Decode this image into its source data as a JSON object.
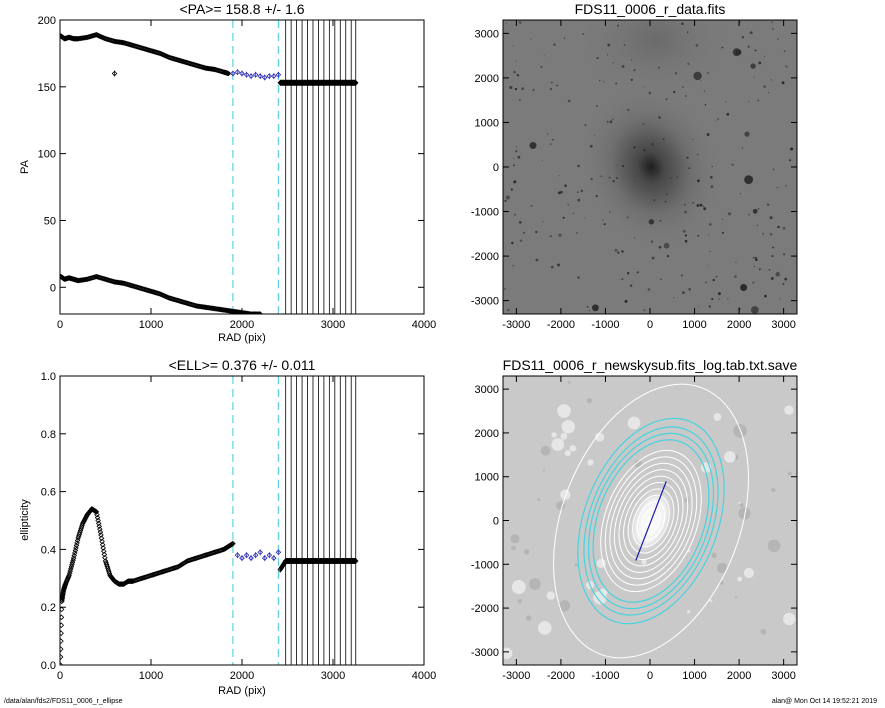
{
  "footer": {
    "left": "/data/alan/fds2/FDS11_0006_r_ellipse",
    "right": "alan@  Mon Oct 14 19:52:21 2019"
  },
  "colors": {
    "fit_points": "#2b2bb5",
    "dashed_lines": "#5fd3e0",
    "ellipse_white": "#ffffff",
    "ellipse_cyan": "#49d2dc",
    "major_axis": "#1a1aa8"
  },
  "chart_data": [
    {
      "type": "scatter",
      "title": "<PA>= 158.8 +/-   1.6",
      "xlabel": "RAD (pix)",
      "ylabel": "PA",
      "xlim": [
        0,
        4000
      ],
      "ylim": [
        -20,
        200
      ],
      "xticks": [
        "0",
        "1000",
        "2000",
        "3000",
        "4000"
      ],
      "yticks": [
        "0",
        "50",
        "100",
        "150",
        "200"
      ],
      "dashed_x": [
        1900,
        2400
      ],
      "vertical_lines_x": [
        2480,
        2540,
        2600,
        2660,
        2720,
        2780,
        2840,
        2900,
        2960,
        3020,
        3080,
        3140,
        3200,
        3250
      ],
      "series": [
        {
          "x": [
            10,
            50,
            100,
            150,
            200,
            300,
            400,
            500,
            600,
            700,
            800,
            900,
            1000,
            1100,
            1200,
            1300,
            1400,
            1500,
            1600,
            1700,
            1800,
            1850
          ],
          "y": [
            188,
            186,
            187,
            186,
            186,
            187,
            189,
            186,
            184,
            183,
            181,
            179,
            177,
            175,
            172,
            170,
            168,
            166,
            164,
            163,
            161,
            160
          ]
        },
        {
          "x": [
            10,
            50,
            100,
            150,
            200,
            300,
            400,
            500,
            600,
            700,
            800,
            900,
            1000,
            1100,
            1200,
            1300,
            1400,
            1500,
            1600,
            1700,
            1800,
            1900,
            2000,
            2100,
            2200
          ],
          "y": [
            8,
            6,
            7,
            6,
            5,
            6,
            8,
            6,
            4,
            3,
            1,
            -1,
            -3,
            -5,
            -8,
            -10,
            -12,
            -14,
            -15,
            -16,
            -17,
            -18,
            -19,
            -20,
            -20
          ]
        },
        {
          "name": "fit",
          "x": [
            1900,
            1950,
            2000,
            2050,
            2100,
            2150,
            2200,
            2250,
            2300,
            2350,
            2400
          ],
          "y": [
            160,
            161,
            160,
            159,
            158,
            159,
            158,
            157,
            158,
            158,
            159
          ]
        },
        {
          "x": [
            2420,
            2480,
            2540,
            2600,
            2660,
            2720,
            2780,
            2840,
            2900,
            2960,
            3020,
            3080,
            3140,
            3200,
            3250
          ],
          "y": [
            153,
            153,
            153,
            153,
            153,
            153,
            153,
            153,
            153,
            153,
            153,
            153,
            153,
            153,
            153
          ]
        },
        {
          "x": [
            600
          ],
          "y": [
            160
          ]
        }
      ]
    },
    {
      "type": "scatter",
      "title": "<ELL>= 0.376 +/-  0.011",
      "xlabel": "RAD (pix)",
      "ylabel": "ellipticity",
      "xlim": [
        0,
        4000
      ],
      "ylim": [
        0,
        1
      ],
      "xticks": [
        "0",
        "1000",
        "2000",
        "3000",
        "4000"
      ],
      "yticks": [
        "0.0",
        "0.2",
        "0.4",
        "0.6",
        "0.8",
        "1.0"
      ],
      "dashed_x": [
        1900,
        2400
      ],
      "vertical_lines_x": [
        2480,
        2540,
        2600,
        2660,
        2720,
        2780,
        2840,
        2900,
        2960,
        3020,
        3080,
        3140,
        3200,
        3250
      ],
      "series": [
        {
          "x": [
            5,
            20,
            40,
            60,
            100,
            150,
            200,
            250,
            300,
            350,
            400,
            450,
            500,
            550,
            600,
            650,
            700,
            750,
            800,
            900,
            1000,
            1100,
            1200,
            1300,
            1400,
            1500,
            1600,
            1700,
            1800,
            1850,
            1900
          ],
          "y": [
            0.0,
            0.22,
            0.26,
            0.28,
            0.31,
            0.37,
            0.44,
            0.49,
            0.52,
            0.54,
            0.53,
            0.45,
            0.36,
            0.31,
            0.29,
            0.28,
            0.28,
            0.29,
            0.29,
            0.3,
            0.31,
            0.32,
            0.33,
            0.34,
            0.36,
            0.37,
            0.38,
            0.39,
            0.4,
            0.41,
            0.42
          ]
        },
        {
          "name": "fit",
          "x": [
            1950,
            2000,
            2050,
            2100,
            2150,
            2200,
            2250,
            2300,
            2350,
            2400
          ],
          "y": [
            0.38,
            0.37,
            0.38,
            0.37,
            0.38,
            0.39,
            0.37,
            0.38,
            0.37,
            0.39
          ]
        },
        {
          "x": [
            2420,
            2480,
            2540,
            2600,
            2660,
            2720,
            2780,
            2840,
            2900,
            2960,
            3020,
            3080,
            3140,
            3200,
            3250
          ],
          "y": [
            0.33,
            0.36,
            0.36,
            0.36,
            0.36,
            0.36,
            0.36,
            0.36,
            0.36,
            0.36,
            0.36,
            0.36,
            0.36,
            0.36,
            0.36
          ]
        }
      ]
    },
    {
      "type": "image",
      "title": "FDS11_0006_r_data.fits",
      "xlim": [
        -3300,
        3300
      ],
      "ylim": [
        -3300,
        3300
      ],
      "xticks": [
        "-3000",
        "-2000",
        "-1000",
        "0",
        "1000",
        "2000",
        "3000"
      ],
      "yticks": [
        "-3000",
        "-2000",
        "-1000",
        "0",
        "1000",
        "2000",
        "3000"
      ]
    },
    {
      "type": "image",
      "title": "FDS11_0006_r_newskysub.fits_log.tab.txt.save",
      "xlim": [
        -3300,
        3300
      ],
      "ylim": [
        -3300,
        3300
      ],
      "xticks": [
        "-3000",
        "-2000",
        "-1000",
        "0",
        "1000",
        "2000",
        "3000"
      ],
      "yticks": [
        "-3000",
        "-2000",
        "-1000",
        "0",
        "1000",
        "2000",
        "3000"
      ],
      "overlay": {
        "galaxy_pa_deg": 158.8,
        "galaxy_ellipticity": 0.376,
        "white_ellipse_sma": [
          3200,
          300,
          450,
          600,
          750,
          900,
          1050,
          1200,
          1350,
          1500,
          1650
        ],
        "cyan_ellipse_sma": [
          1900,
          2050,
          2200,
          2400
        ],
        "major_axis_halflength": 950
      }
    }
  ]
}
